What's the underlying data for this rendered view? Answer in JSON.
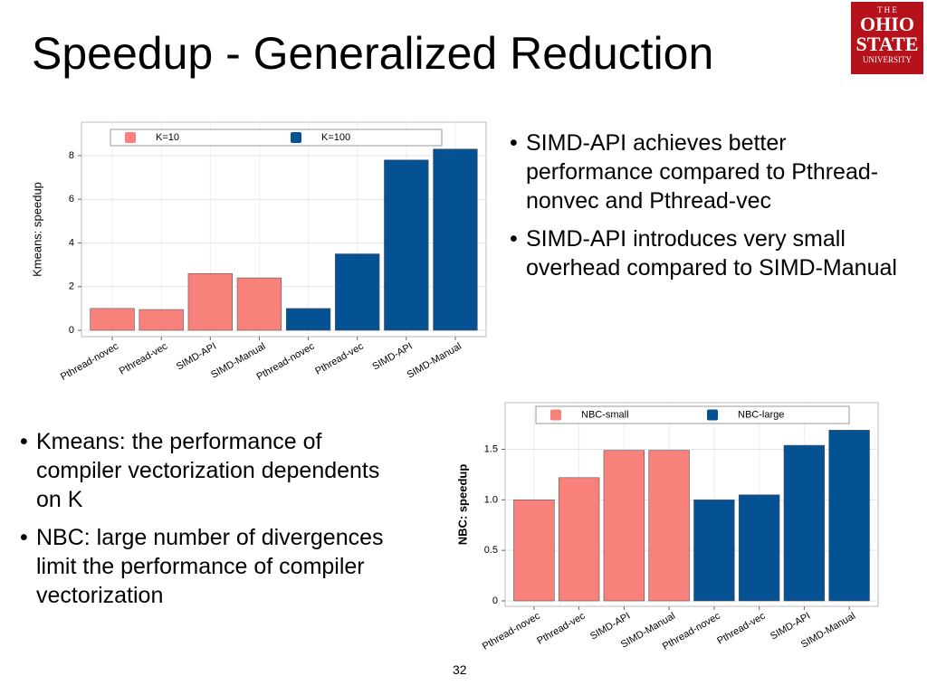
{
  "title": "Speedup - Generalized Reduction",
  "logo": {
    "top": "T H E",
    "line1": "OHIO",
    "line2": "STATE",
    "line3": "UNIVERSITY"
  },
  "right_bullets": [
    "SIMD-API achieves better performance compared to Pthread-nonvec and Pthread-vec",
    "SIMD-API introduces very small overhead compared to SIMD-Manual"
  ],
  "left_bullets": [
    "Kmeans: the performance of compiler vectorization dependents on K",
    "NBC: large number of divergences limit the performance of compiler vectorization"
  ],
  "page_number": "32",
  "chart_data": [
    {
      "type": "bar",
      "y_label": "Kmeans: speedup",
      "categories": [
        "Pthread-novec",
        "Pthread-vec",
        "SIMD-API",
        "SIMD-Manual",
        "Pthread-novec",
        "Pthread-vec",
        "SIMD-API",
        "SIMD-Manual"
      ],
      "series": [
        {
          "name": "K=10",
          "color": "#f8827b",
          "values": [
            1.0,
            0.95,
            2.6,
            2.4,
            null,
            null,
            null,
            null
          ]
        },
        {
          "name": "K=100",
          "color": "#045293",
          "values": [
            null,
            null,
            null,
            null,
            1.0,
            3.5,
            7.8,
            8.3
          ]
        }
      ],
      "ylim": [
        0,
        9.2
      ],
      "yticks": [
        0,
        2,
        4,
        6,
        8
      ],
      "grid": true,
      "legend": "top"
    },
    {
      "type": "bar",
      "y_label": "NBC: speedup",
      "categories": [
        "Pthread-novec",
        "Pthread-vec",
        "SIMD-API",
        "SIMD-Manual",
        "Pthread-novec",
        "Pthread-vec",
        "SIMD-API",
        "SIMD-Manual"
      ],
      "series": [
        {
          "name": "NBC-small",
          "color": "#f8827b",
          "values": [
            1.0,
            1.22,
            1.49,
            1.49,
            null,
            null,
            null,
            null
          ]
        },
        {
          "name": "NBC-large",
          "color": "#045293",
          "values": [
            null,
            null,
            null,
            null,
            1.0,
            1.05,
            1.54,
            1.69
          ]
        }
      ],
      "ylim": [
        0,
        1.89
      ],
      "yticks": [
        0,
        0.5,
        {
          "value": 1,
          "label": "1.0"
        },
        1.5
      ],
      "grid": true,
      "legend": "top"
    }
  ]
}
